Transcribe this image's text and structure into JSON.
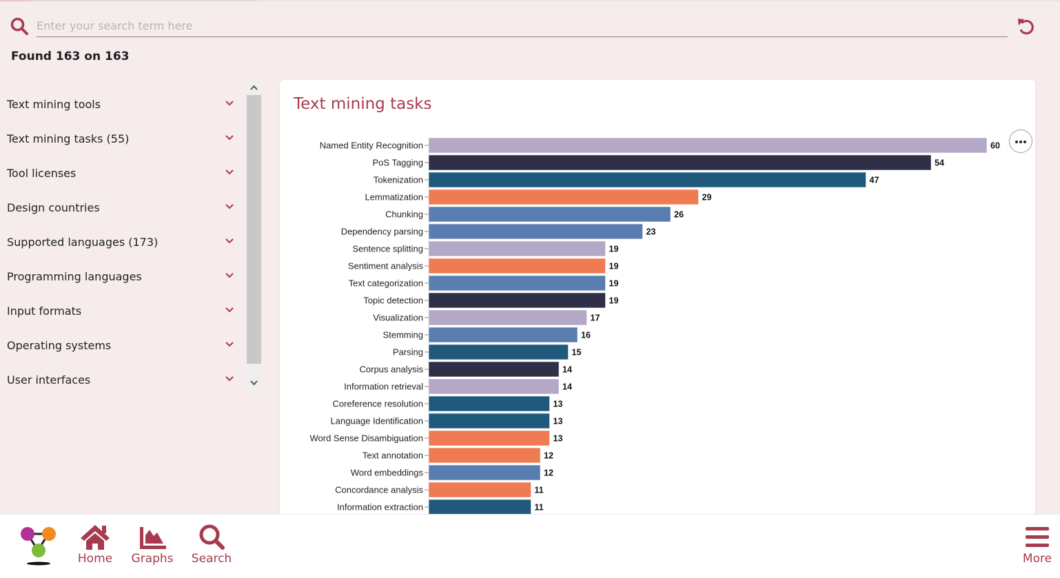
{
  "search": {
    "placeholder": "Enter your search term here",
    "value": "",
    "found_text": "Found 163 on 163"
  },
  "sidebar": {
    "items": [
      {
        "label": "Text mining tools"
      },
      {
        "label": "Text mining tasks (55)"
      },
      {
        "label": "Tool licenses"
      },
      {
        "label": "Design countries"
      },
      {
        "label": "Supported languages (173)"
      },
      {
        "label": "Programming languages"
      },
      {
        "label": "Input formats"
      },
      {
        "label": "Operating systems"
      },
      {
        "label": "User interfaces"
      }
    ]
  },
  "card": {
    "title": "Text mining tasks",
    "menu_icon": "more-horizontal-icon"
  },
  "colors": {
    "accent": "#a83a4e",
    "lavender": "#b3a9c7",
    "navy": "#2f2f48",
    "teal": "#1f5a7c",
    "orange": "#ef7b52",
    "steel": "#5a7db0"
  },
  "chart_data": {
    "type": "bar",
    "orientation": "horizontal",
    "title": "Text mining tasks",
    "xlabel": "",
    "ylabel": "",
    "xlim": [
      0,
      60
    ],
    "grid": false,
    "data_labels": true,
    "categories": [
      "Named Entity Recognition",
      "PoS Tagging",
      "Tokenization",
      "Lemmatization",
      "Chunking",
      "Dependency parsing",
      "Sentence splitting",
      "Sentiment analysis",
      "Text categorization",
      "Topic detection",
      "Visualization",
      "Stemming",
      "Parsing",
      "Corpus analysis",
      "Information retrieval",
      "Coreference resolution",
      "Language Identification",
      "Word Sense Disambiguation",
      "Text annotation",
      "Word embeddings",
      "Concordance analysis",
      "Information extraction"
    ],
    "values": [
      60,
      54,
      47,
      29,
      26,
      23,
      19,
      19,
      19,
      19,
      17,
      16,
      15,
      14,
      14,
      13,
      13,
      13,
      12,
      12,
      11,
      11
    ],
    "bar_colors": [
      "#b3a9c7",
      "#2f2f48",
      "#1f5a7c",
      "#ef7b52",
      "#5a7db0",
      "#5a7db0",
      "#b3a9c7",
      "#ef7b52",
      "#5a7db0",
      "#2f2f48",
      "#b3a9c7",
      "#5a7db0",
      "#1f5a7c",
      "#2f2f48",
      "#b3a9c7",
      "#1f5a7c",
      "#1f5a7c",
      "#ef7b52",
      "#ef7b52",
      "#5a7db0",
      "#ef7b52",
      "#1f5a7c"
    ]
  },
  "bottom_nav": {
    "items": [
      {
        "label": "Home",
        "icon": "home-icon"
      },
      {
        "label": "Graphs",
        "icon": "area-chart-icon"
      },
      {
        "label": "Search",
        "icon": "search-icon"
      },
      {
        "label": "More",
        "icon": "hamburger-menu-icon"
      }
    ]
  }
}
